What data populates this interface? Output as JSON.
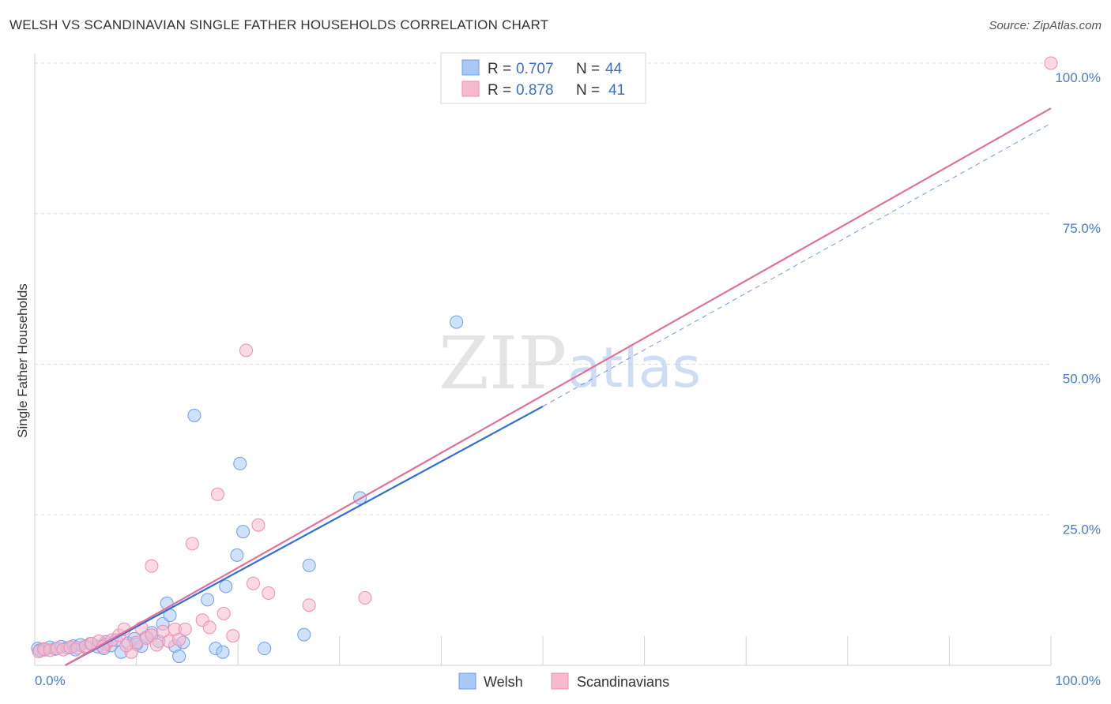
{
  "header": {
    "title": "WELSH VS SCANDINAVIAN SINGLE FATHER HOUSEHOLDS CORRELATION CHART",
    "source": "Source: ZipAtlas.com"
  },
  "watermark": {
    "zip": "ZIP",
    "atlas": "atlas"
  },
  "legend": {
    "rows": [
      {
        "r_label": "R =",
        "r_value": "0.707",
        "n_label": "N =",
        "n_value": "44",
        "color": "#a9c8f5"
      },
      {
        "r_label": "R =",
        "r_value": "0.878",
        "n_label": "N =",
        "n_value": "41",
        "color": "#f7b9cc"
      }
    ]
  },
  "chart_data": {
    "type": "scatter",
    "title": "WELSH VS SCANDINAVIAN SINGLE FATHER HOUSEHOLDS CORRELATION CHART",
    "xlabel": "",
    "ylabel": "Single Father Households",
    "xlim": [
      0,
      100
    ],
    "ylim": [
      0,
      100
    ],
    "x_tick_labels": [
      "0.0%",
      "100.0%"
    ],
    "y_ticks": [
      25,
      50,
      75,
      100
    ],
    "y_tick_labels": [
      "25.0%",
      "50.0%",
      "75.0%",
      "100.0%"
    ],
    "grid": true,
    "legend_position": "top-center",
    "series": [
      {
        "name": "Welsh",
        "color": "#6d9fe6",
        "fill": "#a9c8f5",
        "line_color": "#2f6fd6",
        "trend": {
          "x": [
            3,
            50
          ],
          "y": [
            0,
            43
          ]
        },
        "trend_dashed": {
          "x": [
            50,
            100
          ],
          "y": [
            43,
            90
          ]
        },
        "points": [
          {
            "x": 0.3,
            "y": 2.8
          },
          {
            "x": 0.5,
            "y": 2.5
          },
          {
            "x": 1.0,
            "y": 2.6
          },
          {
            "x": 1.5,
            "y": 3.0
          },
          {
            "x": 2.0,
            "y": 2.7
          },
          {
            "x": 2.6,
            "y": 3.1
          },
          {
            "x": 3.2,
            "y": 2.9
          },
          {
            "x": 3.8,
            "y": 3.2
          },
          {
            "x": 4.5,
            "y": 3.4
          },
          {
            "x": 5.0,
            "y": 3.0
          },
          {
            "x": 5.5,
            "y": 3.6
          },
          {
            "x": 6.2,
            "y": 3.1
          },
          {
            "x": 6.8,
            "y": 2.8
          },
          {
            "x": 7.5,
            "y": 3.3
          },
          {
            "x": 8.0,
            "y": 4.2
          },
          {
            "x": 8.5,
            "y": 2.2
          },
          {
            "x": 9.2,
            "y": 3.7
          },
          {
            "x": 9.8,
            "y": 4.4
          },
          {
            "x": 10.5,
            "y": 3.2
          },
          {
            "x": 11.0,
            "y": 4.7
          },
          {
            "x": 11.5,
            "y": 5.4
          },
          {
            "x": 12.2,
            "y": 4.0
          },
          {
            "x": 12.6,
            "y": 6.9
          },
          {
            "x": 13.0,
            "y": 10.3
          },
          {
            "x": 13.3,
            "y": 8.3
          },
          {
            "x": 13.8,
            "y": 3.2
          },
          {
            "x": 14.2,
            "y": 1.5
          },
          {
            "x": 14.6,
            "y": 3.8
          },
          {
            "x": 15.7,
            "y": 41.5
          },
          {
            "x": 17.0,
            "y": 10.9
          },
          {
            "x": 17.8,
            "y": 2.8
          },
          {
            "x": 18.5,
            "y": 2.2
          },
          {
            "x": 18.8,
            "y": 13.1
          },
          {
            "x": 19.9,
            "y": 18.3
          },
          {
            "x": 20.2,
            "y": 33.5
          },
          {
            "x": 20.5,
            "y": 22.2
          },
          {
            "x": 22.6,
            "y": 2.8
          },
          {
            "x": 26.5,
            "y": 5.1
          },
          {
            "x": 27.0,
            "y": 16.6
          },
          {
            "x": 32.0,
            "y": 27.8
          },
          {
            "x": 41.5,
            "y": 57.0
          },
          {
            "x": 10.0,
            "y": 3.5
          },
          {
            "x": 4.0,
            "y": 2.6
          },
          {
            "x": 7.0,
            "y": 3.9
          }
        ]
      },
      {
        "name": "Scandinavians",
        "color": "#f08db0",
        "fill": "#f7b9cc",
        "line_color": "#e2709a",
        "trend": {
          "x": [
            3,
            100
          ],
          "y": [
            0,
            92.5
          ]
        },
        "points": [
          {
            "x": 0.4,
            "y": 2.3
          },
          {
            "x": 0.9,
            "y": 2.7
          },
          {
            "x": 1.5,
            "y": 2.5
          },
          {
            "x": 2.2,
            "y": 2.8
          },
          {
            "x": 2.8,
            "y": 2.6
          },
          {
            "x": 3.5,
            "y": 3.0
          },
          {
            "x": 4.2,
            "y": 2.9
          },
          {
            "x": 5.0,
            "y": 3.2
          },
          {
            "x": 5.6,
            "y": 3.6
          },
          {
            "x": 6.3,
            "y": 4.0
          },
          {
            "x": 7.0,
            "y": 3.5
          },
          {
            "x": 7.6,
            "y": 4.2
          },
          {
            "x": 8.3,
            "y": 5.0
          },
          {
            "x": 8.8,
            "y": 6.0
          },
          {
            "x": 9.5,
            "y": 2.2
          },
          {
            "x": 10.0,
            "y": 3.8
          },
          {
            "x": 10.5,
            "y": 6.2
          },
          {
            "x": 11.0,
            "y": 4.5
          },
          {
            "x": 11.5,
            "y": 5.0
          },
          {
            "x": 12.0,
            "y": 3.4
          },
          {
            "x": 12.6,
            "y": 5.6
          },
          {
            "x": 13.2,
            "y": 4.0
          },
          {
            "x": 13.8,
            "y": 6.0
          },
          {
            "x": 14.2,
            "y": 4.3
          },
          {
            "x": 14.8,
            "y": 6.0
          },
          {
            "x": 16.5,
            "y": 7.5
          },
          {
            "x": 17.2,
            "y": 6.3
          },
          {
            "x": 18.0,
            "y": 28.4
          },
          {
            "x": 18.6,
            "y": 8.6
          },
          {
            "x": 19.5,
            "y": 4.9
          },
          {
            "x": 20.8,
            "y": 52.3
          },
          {
            "x": 21.5,
            "y": 13.6
          },
          {
            "x": 22.0,
            "y": 23.3
          },
          {
            "x": 23.0,
            "y": 12.0
          },
          {
            "x": 27.0,
            "y": 10.0
          },
          {
            "x": 32.5,
            "y": 11.2
          },
          {
            "x": 11.5,
            "y": 16.5
          },
          {
            "x": 15.5,
            "y": 20.2
          },
          {
            "x": 100.0,
            "y": 100.0
          },
          {
            "x": 9.0,
            "y": 3.3
          },
          {
            "x": 6.7,
            "y": 3.1
          }
        ]
      }
    ]
  },
  "bottom_legend": {
    "welsh": "Welsh",
    "scandinavians": "Scandinavians"
  }
}
